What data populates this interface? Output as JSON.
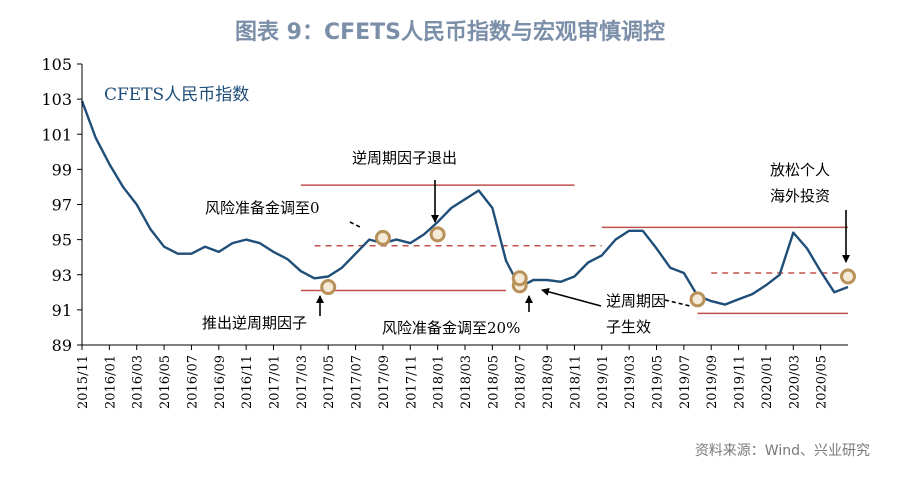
{
  "chart_data": {
    "type": "line",
    "title": "图表 9：CFETS人民币指数与宏观审慎调控",
    "series": [
      {
        "name": "CFETS人民币指数",
        "color": "#1f4e79",
        "x": [
          "2015/11",
          "2015/12",
          "2016/01",
          "2016/02",
          "2016/03",
          "2016/04",
          "2016/05",
          "2016/06",
          "2016/07",
          "2016/08",
          "2016/09",
          "2016/10",
          "2016/11",
          "2016/12",
          "2017/01",
          "2017/02",
          "2017/03",
          "2017/04",
          "2017/05",
          "2017/06",
          "2017/07",
          "2017/08",
          "2017/09",
          "2017/10",
          "2017/11",
          "2017/12",
          "2018/01",
          "2018/02",
          "2018/03",
          "2018/04",
          "2018/05",
          "2018/06",
          "2018/07",
          "2018/08",
          "2018/09",
          "2018/10",
          "2018/11",
          "2018/12",
          "2019/01",
          "2019/02",
          "2019/03",
          "2019/04",
          "2019/05",
          "2019/06",
          "2019/07",
          "2019/08",
          "2019/09",
          "2019/10",
          "2019/11",
          "2019/12",
          "2020/01",
          "2020/02",
          "2020/03",
          "2020/04",
          "2020/05",
          "2020/06",
          "2020/07"
        ],
        "values": [
          102.9,
          100.8,
          99.3,
          98.0,
          97.0,
          95.6,
          94.6,
          94.2,
          94.2,
          94.6,
          94.3,
          94.8,
          95.0,
          94.8,
          94.3,
          93.9,
          93.2,
          92.8,
          92.9,
          93.4,
          94.2,
          95.0,
          94.8,
          95.0,
          94.8,
          95.3,
          96.0,
          96.8,
          97.3,
          97.8,
          96.8,
          93.8,
          92.3,
          92.7,
          92.7,
          92.6,
          92.9,
          93.7,
          94.1,
          95.0,
          95.5,
          95.5,
          94.5,
          93.4,
          93.1,
          91.8,
          91.5,
          91.3,
          91.6,
          91.9,
          92.4,
          93.0,
          95.4,
          94.5,
          93.2,
          92.0,
          92.3
        ]
      }
    ],
    "ylim": [
      89,
      105
    ],
    "yticks": [
      89,
      91,
      93,
      95,
      97,
      99,
      101,
      103,
      105
    ],
    "xticks": [
      "2015/11",
      "2016/01",
      "2016/03",
      "2016/05",
      "2016/07",
      "2016/09",
      "2016/11",
      "2017/01",
      "2017/03",
      "2017/05",
      "2017/07",
      "2017/09",
      "2017/11",
      "2018/01",
      "2018/03",
      "2018/05",
      "2018/07",
      "2018/09",
      "2018/11",
      "2019/01",
      "2019/03",
      "2019/05",
      "2019/07",
      "2019/09",
      "2019/11",
      "2020/01",
      "2020/03",
      "2020/05"
    ],
    "legend_label": "CFETS人民币指数",
    "grid": false,
    "reference_lines": [
      {
        "style": "solid",
        "color": "#c0504d",
        "y": 92.1,
        "from": "2017/03",
        "to": "2018/06"
      },
      {
        "style": "solid",
        "color": "#c0504d",
        "y": 98.1,
        "from": "2017/03",
        "to": "2018/11"
      },
      {
        "style": "dashed",
        "color": "#c0504d",
        "y": 94.65,
        "from": "2017/04",
        "to": "2019/01"
      },
      {
        "style": "solid",
        "color": "#c0504d",
        "y": 95.7,
        "from": "2019/01",
        "to": "2020/07"
      },
      {
        "style": "solid",
        "color": "#c0504d",
        "y": 90.8,
        "from": "2019/08",
        "to": "2020/07"
      },
      {
        "style": "dashed",
        "color": "#c0504d",
        "y": 93.1,
        "from": "2019/09",
        "to": "2020/07"
      }
    ],
    "markers": [
      {
        "x": "2017/05",
        "y": 92.3
      },
      {
        "x": "2017/09",
        "y": 95.1
      },
      {
        "x": "2018/01",
        "y": 95.3
      },
      {
        "x": "2018/07",
        "y": 92.4
      },
      {
        "x": "2018/07",
        "y": 92.8
      },
      {
        "x": "2019/08",
        "y": 91.6
      },
      {
        "x": "2020/07",
        "y": 92.9
      }
    ],
    "annotations": [
      {
        "id": "ann-reserve-0",
        "text": "风险准备金调至0"
      },
      {
        "id": "ann-exit",
        "text": "逆周期因子退出"
      },
      {
        "id": "ann-launch",
        "text": "推出逆周期因子"
      },
      {
        "id": "ann-reserve-20",
        "text": "风险准备金调至20%"
      },
      {
        "id": "ann-effective-1",
        "text": "逆周期因"
      },
      {
        "id": "ann-effective-2",
        "text": "子生效"
      },
      {
        "id": "ann-relax-1",
        "text": "放松个人"
      },
      {
        "id": "ann-relax-2",
        "text": "海外投资"
      }
    ]
  },
  "source": "资料来源：Wind、兴业研究"
}
